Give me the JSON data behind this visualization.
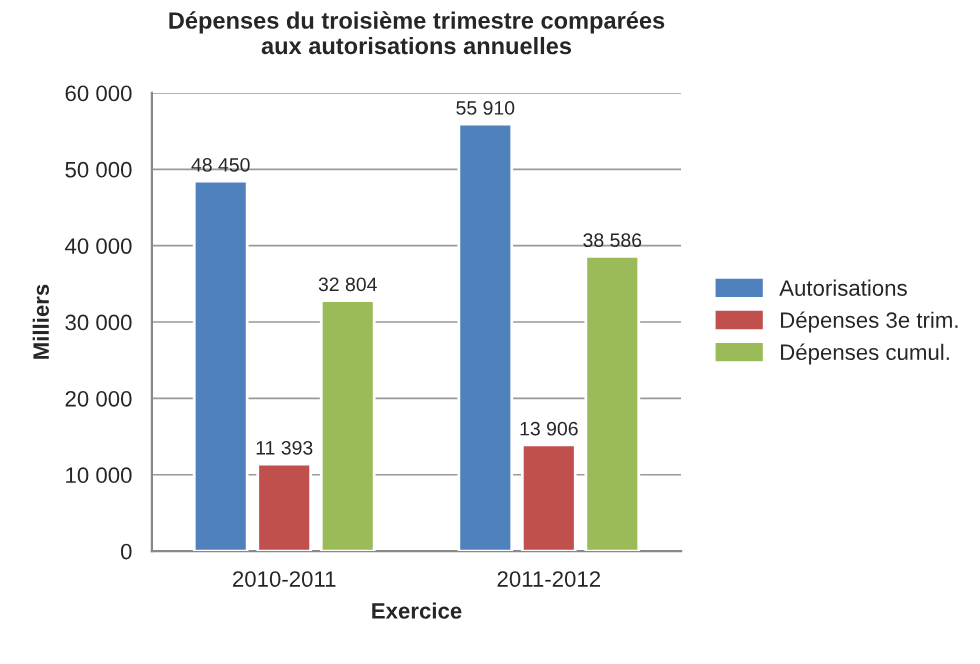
{
  "chart_data": {
    "type": "bar",
    "title": "Dépenses du troisième trimestre comparées\naux autorisations annuelles",
    "xlabel": "Exercice",
    "ylabel": "Milliers",
    "categories": [
      "2010-2011",
      "2011-2012"
    ],
    "series": [
      {
        "name": "Autorisations",
        "color": "#4f81bd",
        "values": [
          48450,
          55910
        ],
        "value_labels": [
          "48 450",
          "55 910"
        ]
      },
      {
        "name": "Dépenses 3e trim.",
        "color": "#c0504d",
        "values": [
          11393,
          13906
        ],
        "value_labels": [
          "11 393",
          "13 906"
        ]
      },
      {
        "name": "Dépenses cumul.",
        "color": "#9bbb59",
        "values": [
          32804,
          38586
        ],
        "value_labels": [
          "32 804",
          "38 586"
        ]
      }
    ],
    "ylim": [
      0,
      60000
    ],
    "yticks": [
      0,
      {
        "value": 10000,
        "label": "10 000"
      },
      {
        "value": 20000,
        "label": "20 000"
      },
      {
        "value": 30000,
        "label": "30 000"
      },
      {
        "value": 40000,
        "label": "40 000"
      },
      {
        "value": 50000,
        "label": "50 000"
      },
      {
        "value": 60000,
        "label": "60 000"
      }
    ],
    "grid": "y",
    "legend": "right"
  }
}
